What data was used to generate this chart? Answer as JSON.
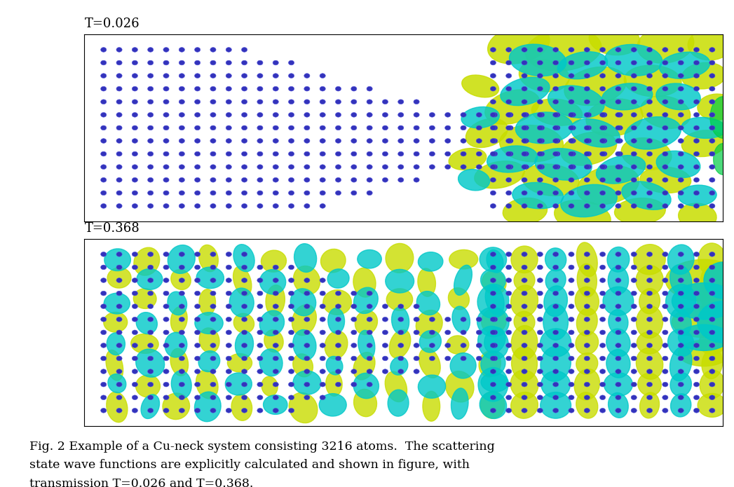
{
  "title1": "T=0.026",
  "title2": "T=0.368",
  "caption_line1": "Fig. 2 Example of a Cu-neck system consisting 3216 atoms.  The scattering",
  "caption_line2": "state wave functions are explicitly calculated and shown in figure, with",
  "caption_line3": "transmission T=0.026 and T=0.368.",
  "fig_width": 10.47,
  "fig_height": 6.95,
  "bg_color": "#ffffff",
  "atom_color": "#3333bb",
  "atom_edge": "#2222aa",
  "yellow_color": "#c8dd00",
  "cyan_color": "#00c8c8",
  "green_color": "#00cc44",
  "title_fontsize": 13,
  "caption_fontsize": 12.5
}
